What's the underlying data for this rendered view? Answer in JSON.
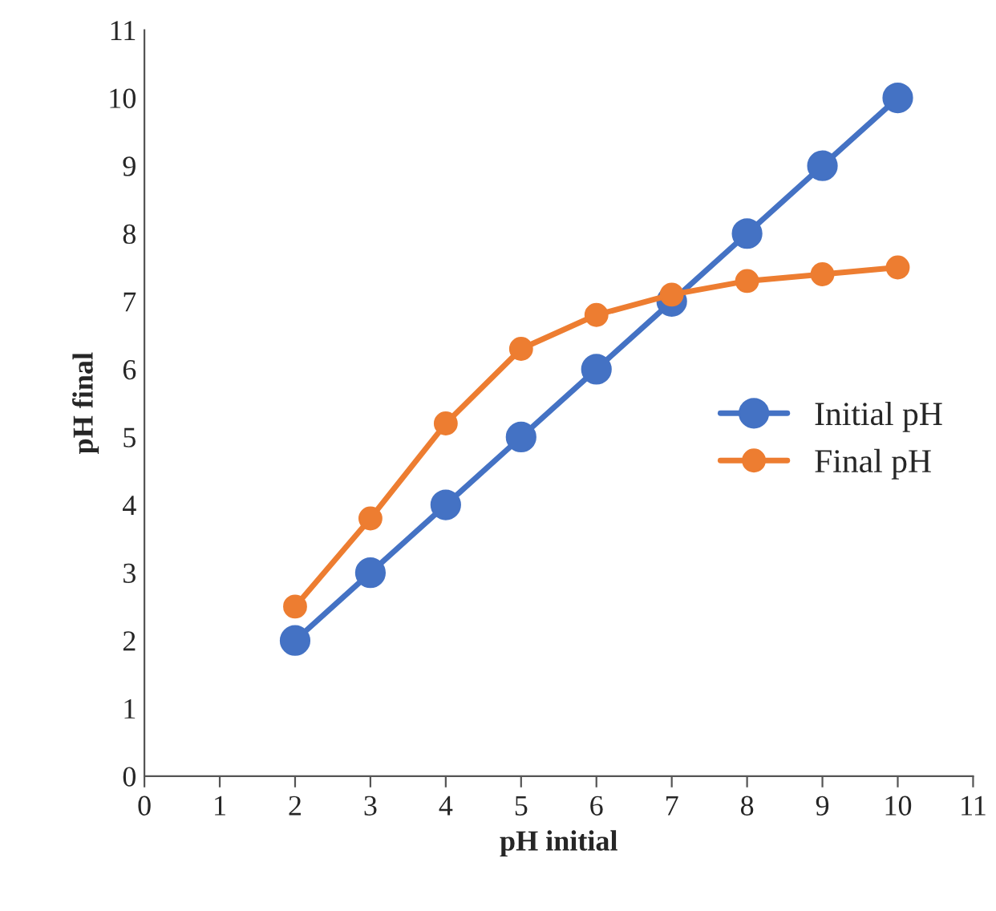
{
  "chart_data": {
    "type": "line",
    "xlabel": "pH initial",
    "ylabel": "pH final",
    "x": [
      2,
      3,
      4,
      5,
      6,
      7,
      8,
      9,
      10
    ],
    "series": [
      {
        "name": "Initial pH",
        "color": "#4472c4",
        "values": [
          2,
          3,
          4,
          5,
          6,
          7,
          8,
          9,
          10
        ]
      },
      {
        "name": "Final pH",
        "color": "#ed7d31",
        "values": [
          2.5,
          3.8,
          5.2,
          6.3,
          6.8,
          7.1,
          7.3,
          7.4,
          7.5
        ]
      }
    ],
    "xlim": [
      0,
      11
    ],
    "xticks": [
      0,
      1,
      2,
      3,
      4,
      5,
      6,
      7,
      8,
      9,
      10,
      11
    ],
    "ylim": [
      0,
      11
    ],
    "yticks": [
      0,
      1,
      2,
      3,
      4,
      5,
      6,
      7,
      8,
      9,
      10,
      11
    ],
    "grid": false,
    "legend": "center right",
    "marker": "circle",
    "line_style": "solid"
  }
}
